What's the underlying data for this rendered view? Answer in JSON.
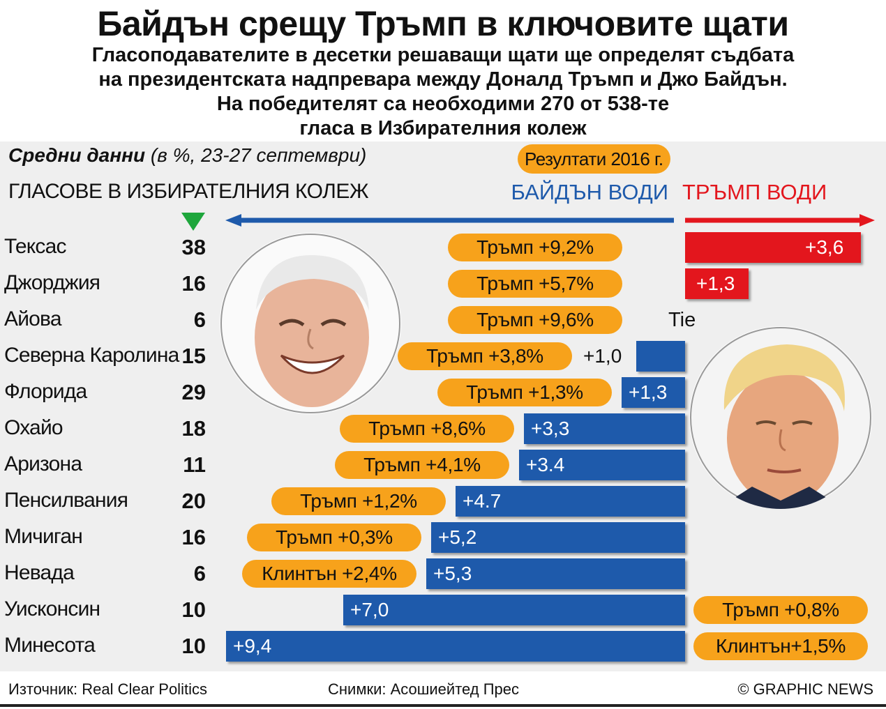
{
  "header": {
    "title": "Байдън срещу Тръмп в ключовите щати",
    "subtitle_lines": [
      "Гласоподавателите в десетки решаващи щати ще определят съдбата",
      "на президентската надпревара между Доналд Тръмп и Джо Байдън.",
      "На победителят са необходими 270 от 538-те",
      "гласа в Избирателния колеж"
    ]
  },
  "legend": {
    "avg_bold": "Средни данни",
    "avg_rest": " (в %, 23-27 септември)",
    "results_2016": "Резултати 2016 г.",
    "ec_header": "ГЛАСОВЕ В ИЗБИРАТЕЛНИЯ КОЛЕЖ",
    "biden_leads": "БАЙДЪН ВОДИ",
    "trump_leads": "ТРЪМП ВОДИ",
    "tie": "Tie"
  },
  "colors": {
    "biden": "#1e5aab",
    "trump": "#e3161d",
    "result_2016": "#f7a21b",
    "electoral_marker": "#1ea63c"
  },
  "chart_data": {
    "type": "bar",
    "orientation": "diverging-horizontal",
    "title": "Байдън срещу Тръмп в ключовите щати",
    "unit": "%",
    "series_names": [
      "Байдън води",
      "Тръмп води"
    ],
    "states": [
      {
        "name": "Тексас",
        "votes": "38",
        "leader": "trump",
        "margin": 3.6,
        "label": "+3,6",
        "result_2016": "Тръмп +9,2%"
      },
      {
        "name": "Джорджия",
        "votes": "16",
        "leader": "trump",
        "margin": 1.3,
        "label": "+1,3",
        "result_2016": "Тръмп +5,7%"
      },
      {
        "name": "Айова",
        "votes": "6",
        "leader": "tie",
        "margin": 0,
        "label": "",
        "result_2016": "Тръмп +9,6%"
      },
      {
        "name": "Северна Каролина",
        "votes": "15",
        "leader": "biden",
        "margin": 1.0,
        "label": "+1,0",
        "result_2016": "Тръмп +3,8%"
      },
      {
        "name": "Флорида",
        "votes": "29",
        "leader": "biden",
        "margin": 1.3,
        "label": "+1,3",
        "result_2016": "Тръмп +1,3%"
      },
      {
        "name": "Охайо",
        "votes": "18",
        "leader": "biden",
        "margin": 3.3,
        "label": "+3,3",
        "result_2016": "Тръмп +8,6%"
      },
      {
        "name": "Аризона",
        "votes": "11",
        "leader": "biden",
        "margin": 3.4,
        "label": "+3.4",
        "result_2016": "Тръмп +4,1%"
      },
      {
        "name": "Пенсилвания",
        "votes": "20",
        "leader": "biden",
        "margin": 4.7,
        "label": "+4.7",
        "result_2016": "Тръмп +1,2%"
      },
      {
        "name": "Мичиган",
        "votes": "16",
        "leader": "biden",
        "margin": 5.2,
        "label": "+5,2",
        "result_2016": "Тръмп +0,3%"
      },
      {
        "name": "Невада",
        "votes": "6",
        "leader": "biden",
        "margin": 5.3,
        "label": "+5,3",
        "result_2016": "Клинтън +2,4%"
      },
      {
        "name": "Уисконсин",
        "votes": "10",
        "leader": "biden",
        "margin": 7.0,
        "label": "+7,0",
        "result_2016": "Тръмп +0,8%"
      },
      {
        "name": "Минесота",
        "votes": "10",
        "leader": "biden",
        "margin": 9.4,
        "label": "+9,4",
        "result_2016": "Клинтън+1,5%"
      }
    ]
  },
  "footer": {
    "source": "Източник: Real Clear Politics",
    "photos": "Снимки: Асошиейтед Прес",
    "credit": "© GRAPHIC NEWS"
  }
}
